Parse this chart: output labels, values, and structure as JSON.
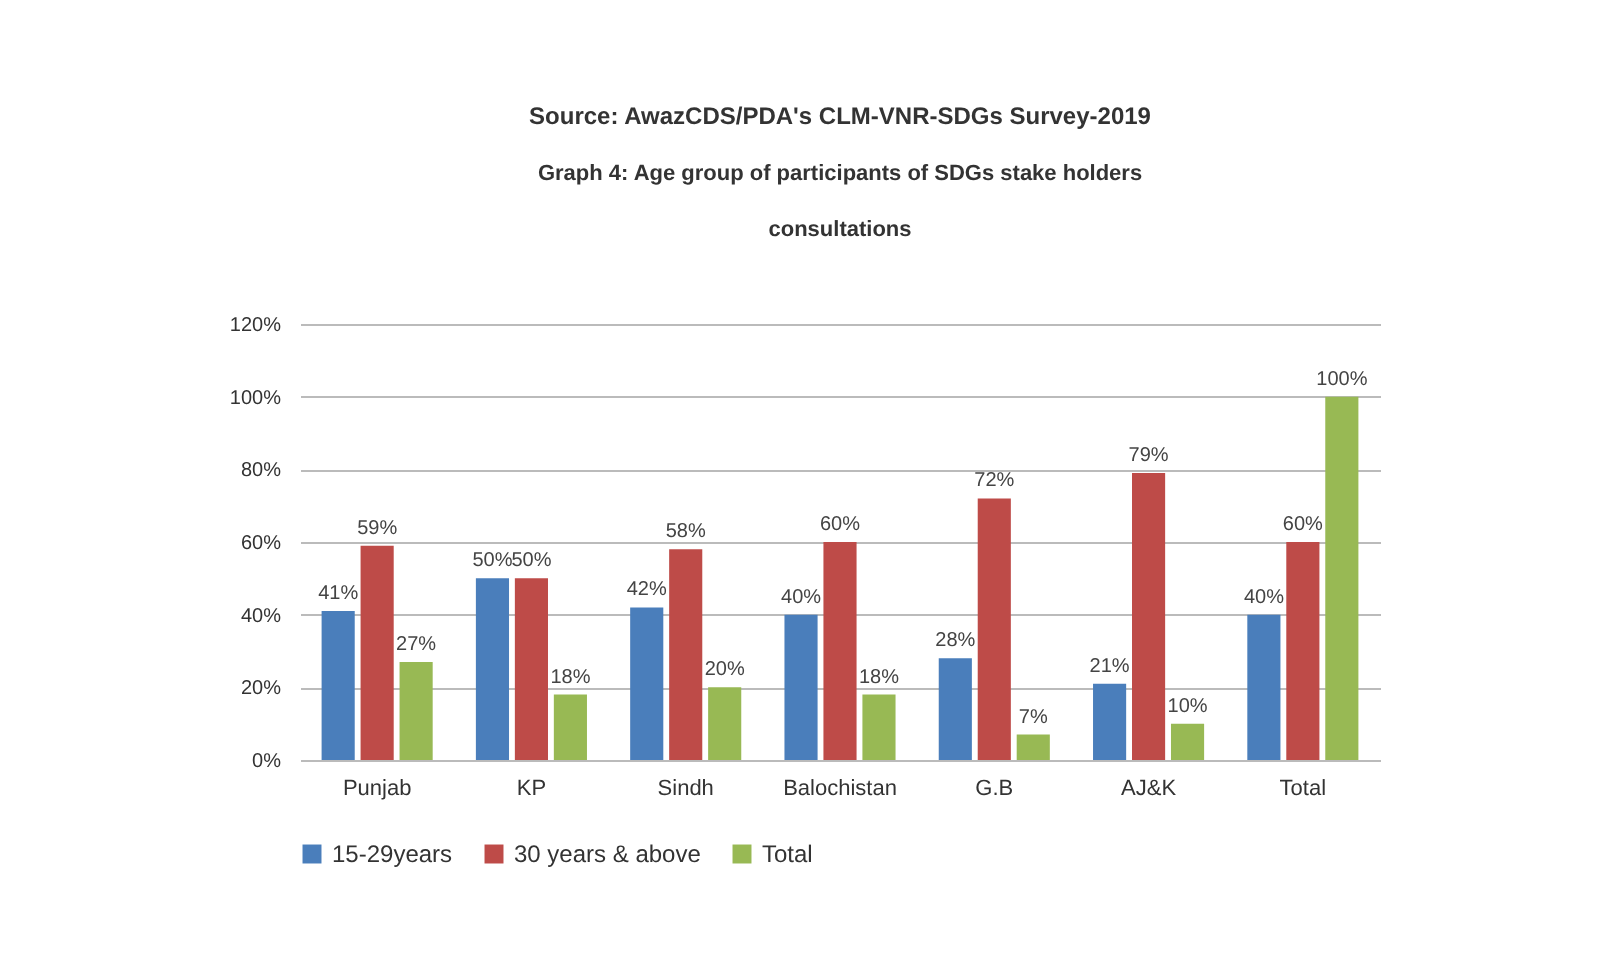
{
  "chart_data": {
    "type": "bar",
    "title": "Graph 4: Age group of participants of SDGs stake holders consultations",
    "annotations": [
      "Source: AwazCDS/PDA's CLM-VNR-SDGs Survey-2019"
    ],
    "categories": [
      "Punjab",
      "KP",
      "Sindh",
      "Balochistan",
      "G.B",
      "AJ&K",
      "Total"
    ],
    "series": [
      {
        "name": "15-29years",
        "color": "#4a7ebb",
        "values": [
          41,
          50,
          42,
          40,
          28,
          21,
          40
        ],
        "value_labels": [
          "41%",
          "50%",
          "42%",
          "40%",
          "28%",
          "21%",
          "40%"
        ]
      },
      {
        "name": "30 years & above",
        "color": "#be4b48",
        "values": [
          59,
          50,
          58,
          60,
          72,
          79,
          60
        ],
        "value_labels": [
          "59%",
          "50%",
          "58%",
          "60%",
          "72%",
          "79%",
          "60%"
        ]
      },
      {
        "name": "Total",
        "color": "#98b954",
        "values": [
          27,
          18,
          20,
          18,
          7,
          10,
          100
        ],
        "value_labels": [
          "27%",
          "18%",
          "20%",
          "18%",
          "7%",
          "10%",
          "100%"
        ]
      }
    ],
    "ylim": [
      0,
      120
    ],
    "yticks": [
      {
        "value": 0,
        "label": "0%"
      },
      {
        "value": 20,
        "label": "20%"
      },
      {
        "value": 40,
        "label": "40%"
      },
      {
        "value": 60,
        "label": "60%"
      },
      {
        "value": 80,
        "label": "80%"
      },
      {
        "value": 100,
        "label": "100%"
      },
      {
        "value": 120,
        "label": "120%"
      }
    ],
    "grid": "y",
    "legend": "bottom"
  }
}
